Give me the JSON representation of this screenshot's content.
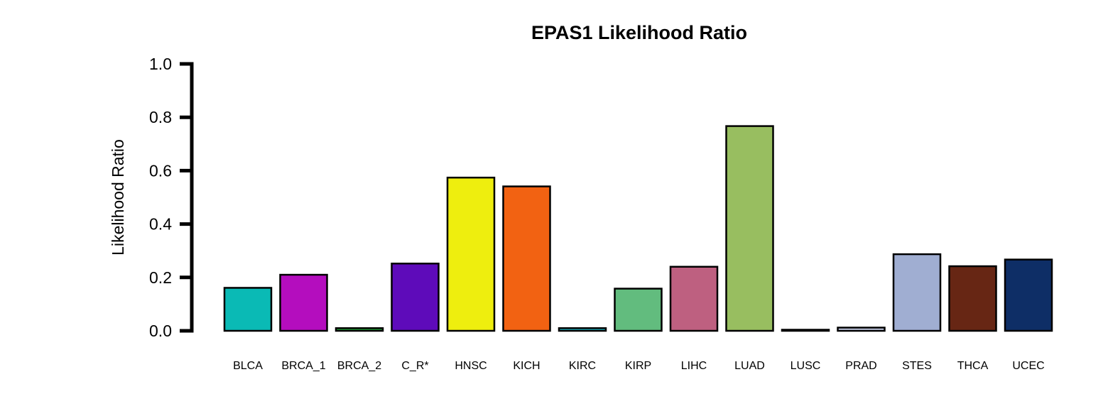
{
  "chart_data": {
    "type": "bar",
    "title": "EPAS1 Likelihood Ratio",
    "xlabel": "",
    "ylabel": "Likelihood Ratio",
    "ylim": [
      0,
      1.0
    ],
    "yticks": [
      "0.0",
      "0.2",
      "0.4",
      "0.6",
      "0.8",
      "1.0"
    ],
    "grid": false,
    "categories": [
      "BLCA",
      "BRCA_1",
      "BRCA_2",
      "C_R*",
      "HNSC",
      "KICH",
      "KIRC",
      "KIRP",
      "LIHC",
      "LUAD",
      "LUSC",
      "PRAD",
      "STES",
      "THCA",
      "UCEC"
    ],
    "values": [
      0.161,
      0.21,
      0.01,
      0.252,
      0.574,
      0.541,
      0.01,
      0.158,
      0.24,
      0.767,
      0.004,
      0.012,
      0.287,
      0.242,
      0.267
    ],
    "colors": [
      "#0ABAB5",
      "#B40DBE",
      "#22A83A",
      "#5E0BBA",
      "#EEEE0E",
      "#F26212",
      "#1BB3C0",
      "#62BC7E",
      "#BE6080",
      "#98BE60",
      "#1A1A1A",
      "#C0C8E0",
      "#A0AED2",
      "#672614",
      "#0E2E66"
    ]
  }
}
